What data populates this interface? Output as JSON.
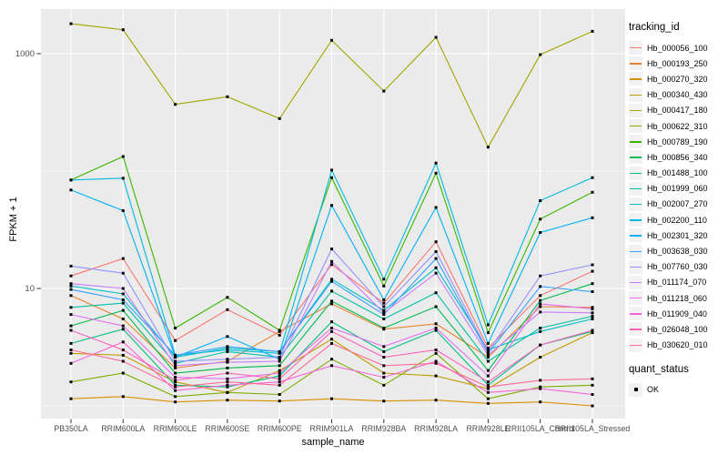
{
  "chart_data": {
    "type": "line",
    "title": "",
    "xlabel": "sample_name",
    "ylabel": "FPKM + 1",
    "y_scale": "log10",
    "grid": true,
    "panel_bg": "#EBEBEB",
    "grid_color": "#FFFFFF",
    "tick_label_color": "#4D4D4D",
    "point_color": "#000000",
    "y_ticks": [
      {
        "label": "1000",
        "value": 1000
      },
      {
        "label": "10",
        "value": 10
      }
    ],
    "y_minor": [
      100,
      1
    ],
    "categories": [
      "PB350LA",
      "RRIM600LA",
      "RRIM600LE",
      "RRIM600SE",
      "RRIM600PE",
      "RRIM901LA",
      "RRIM928BA",
      "RRIM928LA",
      "RRIM928LE",
      "RRII105LA_Control",
      "RRII105LA_Stressed"
    ],
    "legend": {
      "color_title": "tracking_id",
      "shape_title": "quant_status",
      "shape_items": [
        {
          "label": "OK"
        }
      ]
    },
    "series": [
      {
        "name": "Hb_000056_100",
        "color": "#F8766D",
        "values": [
          12.8,
          18,
          3.6,
          6.6,
          4.0,
          16,
          7.5,
          25,
          3.1,
          8.7,
          14
        ]
      },
      {
        "name": "Hb_000193_250",
        "color": "#EA8331",
        "values": [
          8.7,
          5.5,
          2.1,
          2.4,
          4.3,
          7.4,
          4.5,
          5.0,
          2.6,
          7.0,
          6.9
        ]
      },
      {
        "name": "Hb_000270_320",
        "color": "#D89000",
        "values": [
          1.15,
          1.2,
          1.08,
          1.12,
          1.1,
          1.15,
          1.1,
          1.12,
          1.05,
          1.08,
          1.0
        ]
      },
      {
        "name": "Hb_000340_430",
        "color": "#C09B00",
        "values": [
          2.8,
          2.7,
          1.6,
          1.3,
          2.0,
          3.7,
          1.9,
          1.8,
          1.4,
          2.6,
          4.2
        ]
      },
      {
        "name": "Hb_000417_180",
        "color": "#A3A500",
        "values": [
          1800,
          1600,
          370,
          430,
          280,
          1300,
          480,
          1380,
          160,
          980,
          1550
        ]
      },
      {
        "name": "Hb_000622_310",
        "color": "#7CAE00",
        "values": [
          1.6,
          1.9,
          1.2,
          1.3,
          1.25,
          2.5,
          1.5,
          2.8,
          1.15,
          1.45,
          1.5
        ]
      },
      {
        "name": "Hb_000789_190",
        "color": "#39B600",
        "values": [
          84,
          133,
          4.6,
          8.4,
          4.4,
          88,
          10.5,
          96,
          4.2,
          39,
          66
        ]
      },
      {
        "name": "Hb_000856_340",
        "color": "#00BB4E",
        "values": [
          4.8,
          6.5,
          1.9,
          2.1,
          2.2,
          7.8,
          4.6,
          7.0,
          2.0,
          7.9,
          11
        ]
      },
      {
        "name": "Hb_001488_100",
        "color": "#00BF7D",
        "values": [
          3.4,
          4.5,
          1.5,
          1.45,
          1.8,
          5.2,
          2.9,
          4.4,
          1.5,
          3.3,
          4.3
        ]
      },
      {
        "name": "Hb_001999_060",
        "color": "#00C1A3",
        "values": [
          6.9,
          7.5,
          2.3,
          2.9,
          2.6,
          9.5,
          5.5,
          9.2,
          2.4,
          4.6,
          5.8
        ]
      },
      {
        "name": "Hb_002007_270",
        "color": "#00BFC4",
        "values": [
          10.5,
          9.0,
          2.6,
          3.1,
          2.9,
          12,
          6.5,
          15,
          3.0,
          4.3,
          5.5
        ]
      },
      {
        "name": "Hb_002200_110",
        "color": "#00BAE0",
        "values": [
          84,
          87,
          2.7,
          3.0,
          2.8,
          102,
          12,
          117,
          4.9,
          56,
          88
        ]
      },
      {
        "name": "Hb_002301_320",
        "color": "#00B0F6",
        "values": [
          69,
          46,
          2.6,
          3.9,
          2.5,
          51,
          8.0,
          49,
          3.4,
          30,
          40
        ]
      },
      {
        "name": "Hb_003638_030",
        "color": "#35A2FF",
        "values": [
          9.8,
          8.0,
          2.7,
          3.2,
          2.9,
          11.5,
          6.0,
          18,
          2.8,
          10.4,
          9.4
        ]
      },
      {
        "name": "Hb_007760_030",
        "color": "#9590FF",
        "values": [
          15.5,
          13.5,
          2.4,
          2.5,
          2.6,
          21.7,
          7.0,
          20.6,
          2.9,
          12.8,
          15.9
        ]
      },
      {
        "name": "Hb_011174_070",
        "color": "#C77CFF",
        "values": [
          11.0,
          10.0,
          2.2,
          2.35,
          2.4,
          17,
          6.2,
          13.5,
          2.7,
          6.3,
          6.2
        ]
      },
      {
        "name": "Hb_011218_060",
        "color": "#E76BF3",
        "values": [
          6.0,
          4.8,
          1.75,
          1.7,
          1.9,
          4.6,
          3.2,
          4.6,
          1.8,
          7.4,
          6.7
        ]
      },
      {
        "name": "Hb_011909_040",
        "color": "#FA62DB",
        "values": [
          2.3,
          3.5,
          1.35,
          1.5,
          1.6,
          2.2,
          1.75,
          2.4,
          1.3,
          1.4,
          1.25
        ]
      },
      {
        "name": "Hb_026048_100",
        "color": "#FF62BC",
        "values": [
          4.4,
          3.0,
          1.65,
          1.9,
          1.7,
          4.3,
          2.6,
          3.0,
          1.6,
          3.3,
          4.4
        ]
      },
      {
        "name": "Hb_030620_010",
        "color": "#FF6A98",
        "values": [
          3.0,
          2.4,
          1.45,
          1.6,
          1.5,
          3.4,
          2.2,
          2.3,
          1.45,
          1.65,
          1.7
        ]
      }
    ]
  }
}
